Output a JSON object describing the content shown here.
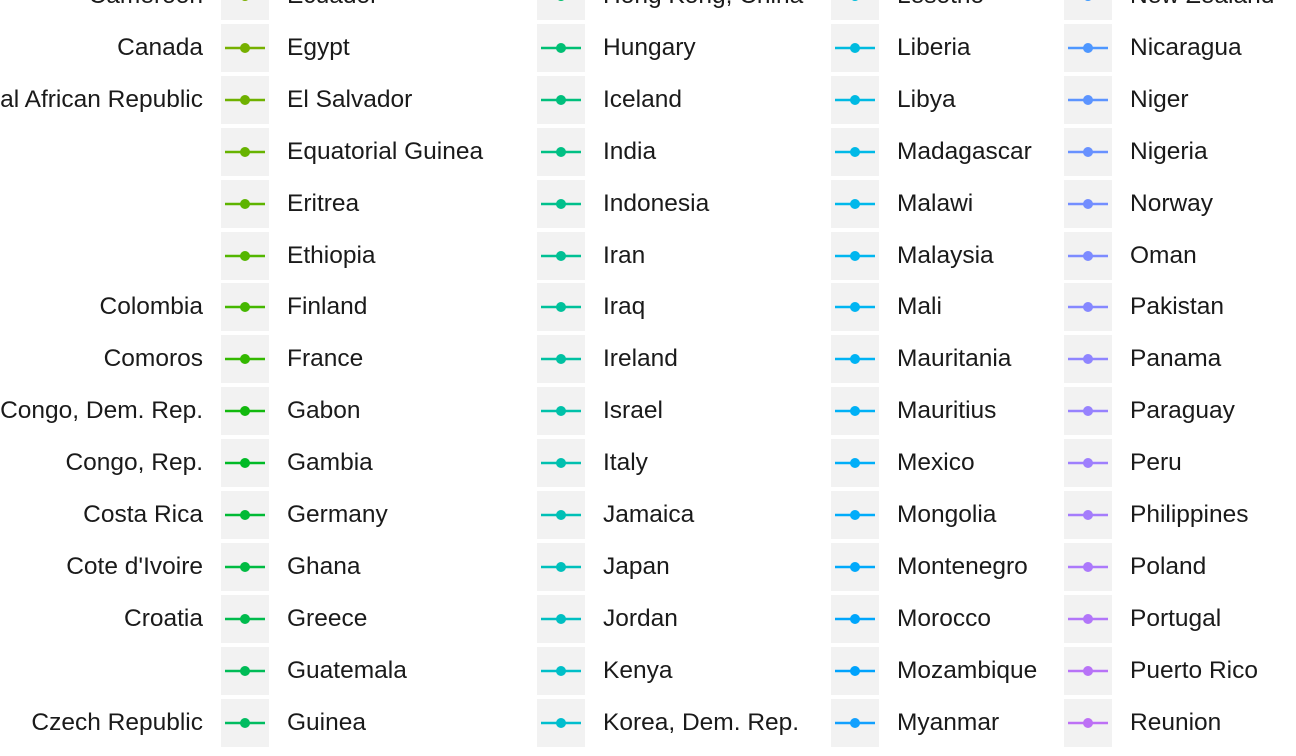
{
  "chart_data": {
    "type": "line",
    "legend_placement": "right",
    "legend_columns": [
      {
        "entries": [
          {
            "name": "Cameroon",
            "color": "#000000"
          },
          {
            "name": "Canada",
            "color": "#000000"
          },
          {
            "name": "Central African Republic",
            "color": "#000000"
          },
          {
            "name": "",
            "color": "#000000"
          },
          {
            "name": "",
            "color": "#000000"
          },
          {
            "name": "",
            "color": "#000000"
          },
          {
            "name": "Colombia",
            "color": "#000000"
          },
          {
            "name": "Comoros",
            "color": "#000000"
          },
          {
            "name": "Congo, Dem. Rep.",
            "color": "#000000"
          },
          {
            "name": "Congo, Rep.",
            "color": "#000000"
          },
          {
            "name": "Costa Rica",
            "color": "#000000"
          },
          {
            "name": "Cote d'Ivoire",
            "color": "#000000"
          },
          {
            "name": "Croatia",
            "color": "#000000"
          },
          {
            "name": "",
            "color": "#000000"
          },
          {
            "name": "Czech Republic",
            "color": "#000000"
          }
        ]
      },
      {
        "entries": [
          {
            "name": "Ecuador",
            "color": "#7CAE00"
          },
          {
            "name": "Egypt",
            "color": "#76B000"
          },
          {
            "name": "El Salvador",
            "color": "#6FB100"
          },
          {
            "name": "Equatorial Guinea",
            "color": "#67B300"
          },
          {
            "name": "Eritrea",
            "color": "#5EB400"
          },
          {
            "name": "Ethiopia",
            "color": "#53B600"
          },
          {
            "name": "Finland",
            "color": "#45B700"
          },
          {
            "name": "France",
            "color": "#33B800"
          },
          {
            "name": "Gabon",
            "color": "#12B90E"
          },
          {
            "name": "Gambia",
            "color": "#00BA26"
          },
          {
            "name": "Germany",
            "color": "#00BA35"
          },
          {
            "name": "Ghana",
            "color": "#00BB42"
          },
          {
            "name": "Greece",
            "color": "#00BB4D"
          },
          {
            "name": "Guatemala",
            "color": "#00BC57"
          },
          {
            "name": "Guinea",
            "color": "#00BC60"
          }
        ]
      },
      {
        "entries": [
          {
            "name": "Hong Kong, China",
            "color": "#00BE6C"
          },
          {
            "name": "Hungary",
            "color": "#00BF74"
          },
          {
            "name": "Iceland",
            "color": "#00BF7C"
          },
          {
            "name": "India",
            "color": "#00C084"
          },
          {
            "name": "Indonesia",
            "color": "#00C08C"
          },
          {
            "name": "Iran",
            "color": "#00C094"
          },
          {
            "name": "Iraq",
            "color": "#00C19B"
          },
          {
            "name": "Ireland",
            "color": "#00C1A2"
          },
          {
            "name": "Israel",
            "color": "#00C1A9"
          },
          {
            "name": "Italy",
            "color": "#00C0AF"
          },
          {
            "name": "Jamaica",
            "color": "#00C0B6"
          },
          {
            "name": "Japan",
            "color": "#00C0BC"
          },
          {
            "name": "Jordan",
            "color": "#00BFC2"
          },
          {
            "name": "Kenya",
            "color": "#00BFC8"
          },
          {
            "name": "Korea, Dem. Rep.",
            "color": "#00BECE"
          }
        ]
      },
      {
        "entries": [
          {
            "name": "Lesotho",
            "color": "#00BCDA"
          },
          {
            "name": "Liberia",
            "color": "#00BBDF"
          },
          {
            "name": "Libya",
            "color": "#00BAE3"
          },
          {
            "name": "Madagascar",
            "color": "#00B9E7"
          },
          {
            "name": "Malawi",
            "color": "#00B8EB"
          },
          {
            "name": "Malaysia",
            "color": "#00B6EF"
          },
          {
            "name": "Mali",
            "color": "#00B5F2"
          },
          {
            "name": "Mauritania",
            "color": "#00B3F4"
          },
          {
            "name": "Mauritius",
            "color": "#00B1F6"
          },
          {
            "name": "Mexico",
            "color": "#00AEF8"
          },
          {
            "name": "Mongolia",
            "color": "#00ACFA"
          },
          {
            "name": "Montenegro",
            "color": "#00A9FB"
          },
          {
            "name": "Morocco",
            "color": "#00A6FC"
          },
          {
            "name": "Mozambique",
            "color": "#00A3FD"
          },
          {
            "name": "Myanmar",
            "color": "#12A0FE"
          }
        ]
      },
      {
        "entries": [
          {
            "name": "New Zealand",
            "color": "#3D9AFF"
          },
          {
            "name": "Nicaragua",
            "color": "#4E97FF"
          },
          {
            "name": "Niger",
            "color": "#5C94FF"
          },
          {
            "name": "Nigeria",
            "color": "#6891FF"
          },
          {
            "name": "Norway",
            "color": "#738EFF"
          },
          {
            "name": "Oman",
            "color": "#7D8BFF"
          },
          {
            "name": "Pakistan",
            "color": "#8688FF"
          },
          {
            "name": "Panama",
            "color": "#8F85FF"
          },
          {
            "name": "Paraguay",
            "color": "#9782FE"
          },
          {
            "name": "Peru",
            "color": "#9E7FFD"
          },
          {
            "name": "Philippines",
            "color": "#A57CFC"
          },
          {
            "name": "Poland",
            "color": "#AC79FB"
          },
          {
            "name": "Portugal",
            "color": "#B276F9"
          },
          {
            "name": "Puerto Rico",
            "color": "#B873F7"
          },
          {
            "name": "Reunion",
            "color": "#BD70F5"
          }
        ]
      }
    ]
  }
}
